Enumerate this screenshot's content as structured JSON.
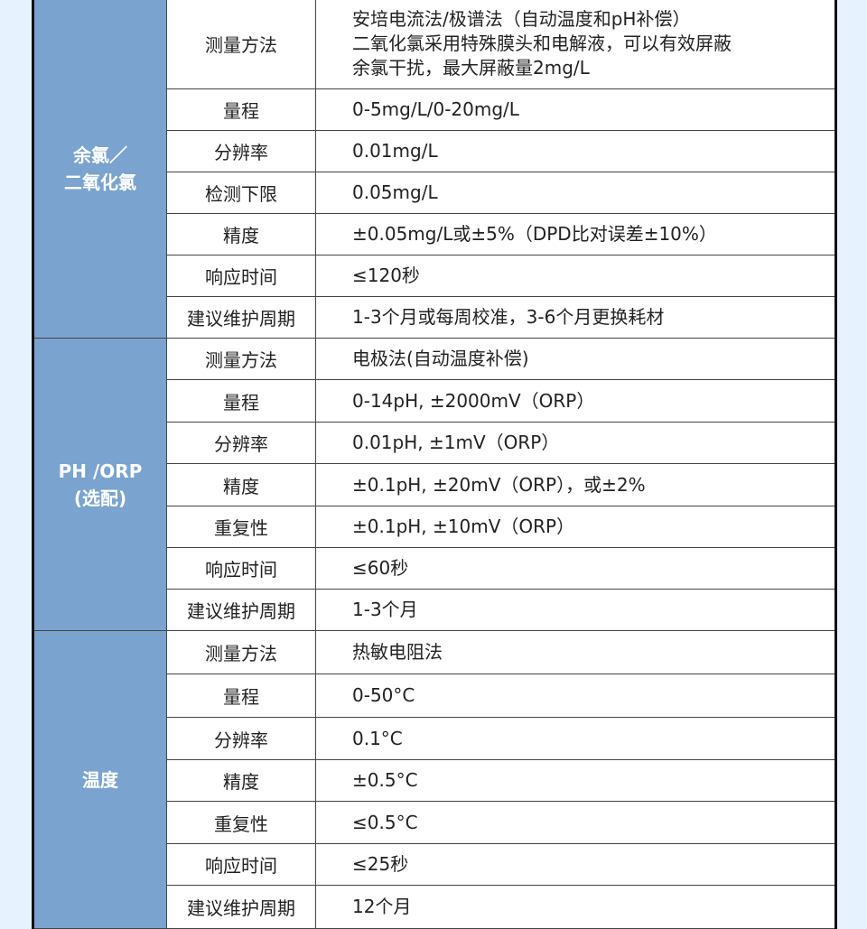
{
  "colors": {
    "background": "#e6f3fe",
    "category_fill": "#7aa3cf"
  },
  "sections": [
    {
      "category": [
        "余氯／",
        "二氧化氯"
      ],
      "rows": [
        {
          "label": "测量方法",
          "value": [
            "安培电流法/极谱法（自动温度和pH补偿）",
            "二氧化氯采用特殊膜头和电解液，可以有效屏蔽",
            "余氯干扰，最大屏蔽量2mg/L"
          ]
        },
        {
          "label": "量程",
          "value": [
            "0-5mg/L/0-20mg/L"
          ]
        },
        {
          "label": "分辨率",
          "value": [
            "0.01mg/L"
          ]
        },
        {
          "label": "检测下限",
          "value": [
            "0.05mg/L"
          ]
        },
        {
          "label": "精度",
          "value": [
            "±0.05mg/L或±5%（DPD比对误差±10%）"
          ]
        },
        {
          "label": "响应时间",
          "value": [
            "≤120秒"
          ]
        },
        {
          "label": "建议维护周期",
          "value": [
            "1-3个月或每周校准，3-6个月更换耗材"
          ]
        }
      ]
    },
    {
      "category": [
        "PH /ORP",
        "(选配)"
      ],
      "rows": [
        {
          "label": "测量方法",
          "value": [
            "电极法(自动温度补偿)"
          ]
        },
        {
          "label": "量程",
          "value": [
            "0-14pH, ±2000mV（ORP）"
          ]
        },
        {
          "label": "分辨率",
          "value": [
            "0.01pH, ±1mV（ORP）"
          ]
        },
        {
          "label": "精度",
          "value": [
            "±0.1pH, ±20mV（ORP），或±2%"
          ]
        },
        {
          "label": "重复性",
          "value": [
            "±0.1pH, ±10mV（ORP）"
          ]
        },
        {
          "label": "响应时间",
          "value": [
            "≤60秒"
          ]
        },
        {
          "label": "建议维护周期",
          "value": [
            "1-3个月"
          ]
        }
      ]
    },
    {
      "category": [
        "温度"
      ],
      "rows": [
        {
          "label": "测量方法",
          "value": [
            "热敏电阻法"
          ]
        },
        {
          "label": "量程",
          "value": [
            "0-50°C"
          ]
        },
        {
          "label": "分辨率",
          "value": [
            "0.1°C"
          ]
        },
        {
          "label": "精度",
          "value": [
            "±0.5°C"
          ]
        },
        {
          "label": "重复性",
          "value": [
            "≤0.5°C"
          ]
        },
        {
          "label": "响应时间",
          "value": [
            "≤25秒"
          ]
        },
        {
          "label": "建议维护周期",
          "value": [
            "12个月"
          ]
        }
      ]
    }
  ]
}
